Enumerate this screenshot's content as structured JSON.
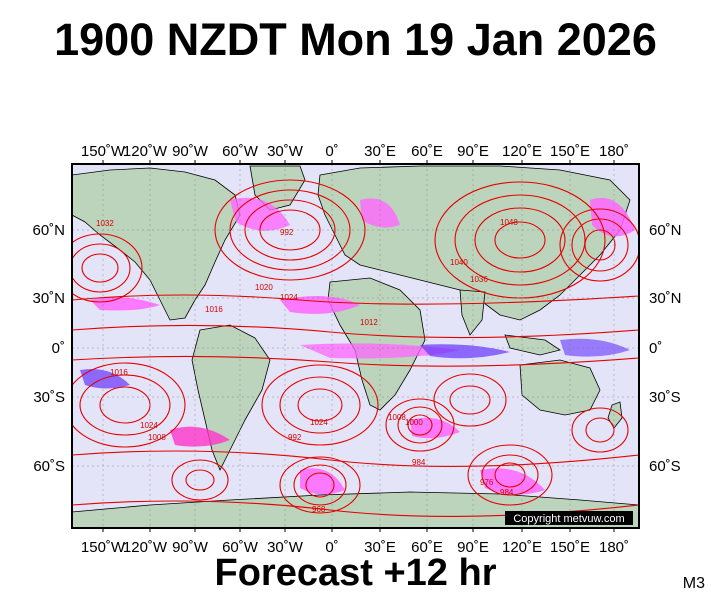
{
  "title": "1900 NZDT Mon 19 Jan 2026",
  "footer": "Forecast +12 hr",
  "model": "M3",
  "copyright": "Copyright metvuw.com",
  "axes": {
    "lon_labels": [
      "150˚W",
      "120˚W",
      "90˚W",
      "60˚W",
      "30˚W",
      "0˚",
      "30˚E",
      "60˚E",
      "90˚E",
      "120˚E",
      "150˚E",
      "180˚"
    ],
    "lat_labels": [
      "60˚N",
      "30˚N",
      "0˚",
      "30˚S",
      "60˚S"
    ]
  },
  "isobar_labels": [
    "1032",
    "1024",
    "1016",
    "992",
    "1020",
    "1040",
    "1048",
    "1036",
    "1012",
    "1008",
    "1000",
    "984",
    "976",
    "968",
    "1016",
    "1024",
    "992",
    "1008",
    "1024",
    "984"
  ],
  "colors": {
    "ocean": "#e4e4f8",
    "land": "#bcd4bc",
    "isobar": "#e60000",
    "precip_light": "#ff66ff",
    "precip_heavy": "#6633ff",
    "coast": "#000000"
  }
}
